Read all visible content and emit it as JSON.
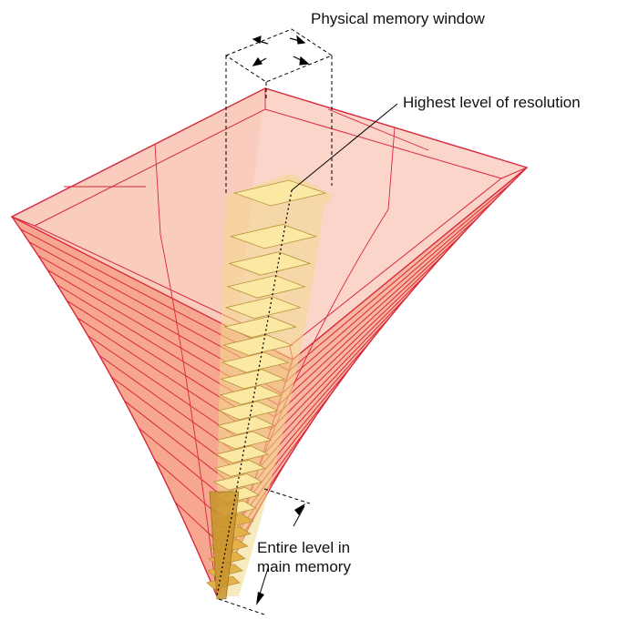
{
  "labels": {
    "physical_memory_window": "Physical memory window",
    "highest_level": "Highest level of resolution",
    "entire_level_line1": "Entire level in",
    "entire_level_line2": "main memory"
  },
  "colors": {
    "pyramid_fill": "#f8a98e",
    "pyramid_edge": "#d8283c",
    "tile_fill": "#fbe9a3",
    "tile_edge": "#b8913a",
    "column_fill": "#f2d88a",
    "tip_fill": "#c8922a"
  },
  "structure": {
    "tile_count": 24
  }
}
